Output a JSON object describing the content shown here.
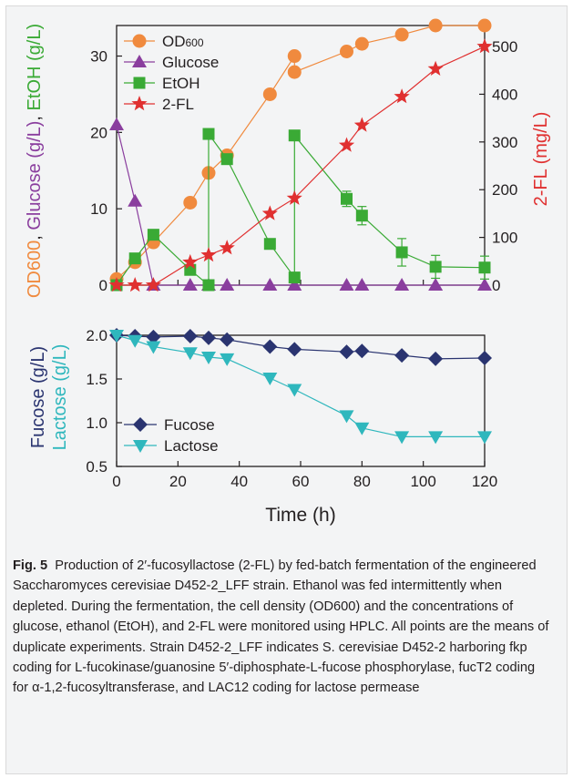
{
  "chart_data": [
    {
      "type": "line",
      "x_axis": {
        "label": "Time (h)",
        "ticks": [
          0,
          20,
          40,
          60,
          80,
          100,
          120
        ],
        "range": [
          0,
          120
        ]
      },
      "y_left": {
        "ticks": [
          0,
          10,
          20,
          30
        ],
        "range": [
          0,
          34
        ],
        "label_parts": [
          {
            "text": "OD600",
            "color": "#f08a3e"
          },
          {
            "text": ", ",
            "color": "#231f20"
          },
          {
            "text": "Glucose (g/L)",
            "color": "#8a3e9e"
          },
          {
            "text": ", ",
            "color": "#231f20"
          },
          {
            "text": "EtOH (g/L)",
            "color": "#3aaa35"
          }
        ]
      },
      "y_right": {
        "label": "2-FL (mg/L)",
        "color": "#e03030",
        "ticks": [
          0,
          100,
          200,
          300,
          400,
          500
        ],
        "range": [
          0,
          544
        ]
      },
      "legend_position": "top-left",
      "series": [
        {
          "name": "OD600",
          "axis": "left",
          "color": "#f08a3e",
          "marker": "circle",
          "x": [
            0,
            6,
            12,
            24,
            30,
            36,
            50,
            58,
            58,
            75,
            80,
            93,
            104,
            120
          ],
          "y": [
            0.8,
            3.0,
            5.6,
            10.8,
            14.7,
            17.0,
            25.0,
            30.0,
            27.9,
            30.6,
            31.6,
            32.8,
            34.0,
            34.0
          ]
        },
        {
          "name": "Glucose",
          "axis": "left",
          "color": "#8a3e9e",
          "marker": "triangle-up",
          "x": [
            0,
            6,
            12,
            24,
            30,
            36,
            50,
            58,
            75,
            80,
            93,
            104,
            120
          ],
          "y": [
            21.0,
            11.0,
            0,
            0,
            0,
            0,
            0,
            0,
            0,
            0,
            0,
            0,
            0
          ]
        },
        {
          "name": "EtOH",
          "axis": "left",
          "color": "#3aaa35",
          "marker": "square",
          "x": [
            0,
            6,
            12,
            24,
            30,
            30,
            36,
            50,
            58,
            58,
            75,
            80,
            93,
            104,
            120
          ],
          "y": [
            0,
            3.5,
            6.6,
            2.0,
            0,
            19.8,
            16.5,
            5.4,
            1.0,
            19.6,
            11.3,
            9.1,
            4.3,
            2.4,
            2.3
          ],
          "err": [
            0,
            0,
            0,
            0,
            0,
            0,
            0,
            0,
            0,
            0,
            1.0,
            1.2,
            1.8,
            1.5,
            1.5
          ]
        },
        {
          "name": "2-FL",
          "axis": "right",
          "color": "#e03030",
          "marker": "star",
          "x": [
            0,
            6,
            12,
            24,
            30,
            36,
            50,
            58,
            75,
            80,
            93,
            104,
            120
          ],
          "y": [
            0,
            0,
            0,
            48,
            63,
            78,
            150,
            182,
            293,
            335,
            395,
            453,
            500
          ]
        }
      ]
    },
    {
      "type": "line",
      "x_axis": {
        "label": "Time (h)",
        "ticks": [
          0,
          20,
          40,
          60,
          80,
          100,
          120
        ],
        "range": [
          0,
          120
        ]
      },
      "y_left": {
        "ticks": [
          "0.5",
          "1.0",
          "1.5",
          "2.0"
        ],
        "range": [
          0.5,
          2.0
        ],
        "label_lines": [
          {
            "text": "Fucose (g/L)",
            "color": "#2a3470"
          },
          {
            "text": "Lactose (g/L)",
            "color": "#2fb7bd"
          }
        ]
      },
      "legend_position": "bottom-left",
      "series": [
        {
          "name": "Fucose",
          "color": "#2a3470",
          "marker": "diamond",
          "x": [
            0,
            6,
            12,
            24,
            30,
            36,
            50,
            58,
            75,
            80,
            93,
            104,
            120
          ],
          "y": [
            2.0,
            1.99,
            1.98,
            1.99,
            1.97,
            1.95,
            1.87,
            1.84,
            1.81,
            1.82,
            1.77,
            1.73,
            1.74
          ]
        },
        {
          "name": "Lactose",
          "color": "#2fb7bd",
          "marker": "triangle-down",
          "x": [
            0,
            6,
            12,
            24,
            30,
            36,
            50,
            58,
            75,
            80,
            93,
            104,
            120
          ],
          "y": [
            2.0,
            1.94,
            1.87,
            1.8,
            1.75,
            1.73,
            1.51,
            1.38,
            1.08,
            0.94,
            0.84,
            0.84,
            0.84
          ]
        }
      ]
    }
  ],
  "caption": {
    "label": "Fig. 5",
    "text": "Production of 2′-fucosyllactose (2-FL) by fed-batch fermentation of the engineered Saccharomyces cerevisiae D452-2_LFF strain. Ethanol was fed intermittently when depleted. During the fermentation, the cell density (OD600) and the concentrations of glucose, ethanol (EtOH), and 2-FL were monitored using HPLC. All points are the means of duplicate experiments. Strain D452-2_LFF indicates S. cerevisiae D452-2 harboring fkp coding for L-fucokinase/guanosine 5′-diphosphate-L-fucose phosphorylase, fucT2 coding for α-1,2-fucosyltransferase, and LAC12 coding for lactose permease"
  }
}
